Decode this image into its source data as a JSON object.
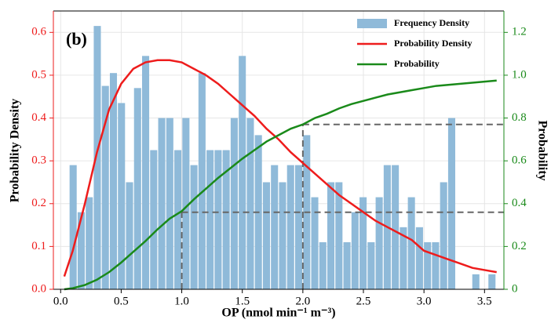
{
  "chart_data": {
    "type": "histogram",
    "panel_label": "(b)",
    "xlabel": "OP (nmol min⁻¹ m⁻³)",
    "ylabel": "Probability Density",
    "y2label": "Probability",
    "name": "Frequency Density",
    "color": "#8fbad9",
    "bins": [
      0.07,
      0.1365,
      0.203,
      0.2695,
      0.336,
      0.4025,
      0.469,
      0.5355,
      0.602,
      0.6685,
      0.735,
      0.8015,
      0.868,
      0.9345,
      1.001,
      1.0675,
      1.134,
      1.2005,
      1.267,
      1.3335,
      1.4,
      1.4665,
      1.533,
      1.5995,
      1.666,
      1.7325,
      1.799,
      1.8655,
      1.932,
      1.9985,
      2.065,
      2.1315,
      2.198,
      2.2645,
      2.331,
      2.3975,
      2.464,
      2.5305,
      2.597,
      2.6635,
      2.73,
      2.7965,
      2.863,
      2.9295,
      2.996,
      3.0625,
      3.129,
      3.1955,
      3.262,
      3.3285,
      3.395,
      3.4615,
      3.528,
      3.5945
    ],
    "values": [
      0.29,
      0.18,
      0.215,
      0.615,
      0.475,
      0.505,
      0.435,
      0.25,
      0.47,
      0.545,
      0.325,
      0.4,
      0.4,
      0.325,
      0.4,
      0.29,
      0.505,
      0.325,
      0.325,
      0.325,
      0.4,
      0.545,
      0.4,
      0.36,
      0.25,
      0.29,
      0.25,
      0.29,
      0.29,
      0.36,
      0.215,
      0.11,
      0.25,
      0.25,
      0.11,
      0.18,
      0.215,
      0.11,
      0.215,
      0.29,
      0.29,
      0.145,
      0.215,
      0.145,
      0.11,
      0.11,
      0.25,
      0.4,
      0,
      0,
      0.035,
      0,
      0.035
    ],
    "series": [
      {
        "type": "line",
        "name": "Probability Density",
        "color": "#ee1c1c",
        "axis": "y",
        "x": [
          0.03,
          0.1,
          0.2,
          0.3,
          0.4,
          0.5,
          0.6,
          0.7,
          0.8,
          0.9,
          1.0,
          1.1,
          1.2,
          1.3,
          1.4,
          1.5,
          1.6,
          1.7,
          1.8,
          1.9,
          2.0,
          2.1,
          2.2,
          2.3,
          2.4,
          2.5,
          2.6,
          2.7,
          2.8,
          2.9,
          3.0,
          3.1,
          3.2,
          3.3,
          3.4,
          3.5,
          3.6
        ],
        "values": [
          0.03,
          0.09,
          0.2,
          0.32,
          0.42,
          0.48,
          0.515,
          0.53,
          0.535,
          0.535,
          0.53,
          0.515,
          0.5,
          0.48,
          0.455,
          0.43,
          0.405,
          0.375,
          0.35,
          0.32,
          0.295,
          0.27,
          0.245,
          0.22,
          0.2,
          0.18,
          0.16,
          0.145,
          0.13,
          0.115,
          0.09,
          0.08,
          0.07,
          0.06,
          0.05,
          0.045,
          0.04
        ]
      },
      {
        "type": "line",
        "name": "Probability",
        "color": "#1a8a1a",
        "axis": "y2",
        "x": [
          0.03,
          0.1,
          0.2,
          0.3,
          0.4,
          0.5,
          0.6,
          0.7,
          0.8,
          0.9,
          1.0,
          1.1,
          1.2,
          1.3,
          1.4,
          1.5,
          1.6,
          1.7,
          1.8,
          1.9,
          2.0,
          2.1,
          2.2,
          2.3,
          2.4,
          2.5,
          2.6,
          2.7,
          2.8,
          2.9,
          3.0,
          3.1,
          3.2,
          3.3,
          3.4,
          3.5,
          3.6
        ],
        "values": [
          0.0,
          0.005,
          0.02,
          0.045,
          0.08,
          0.125,
          0.175,
          0.225,
          0.28,
          0.33,
          0.365,
          0.42,
          0.47,
          0.52,
          0.565,
          0.61,
          0.65,
          0.69,
          0.72,
          0.75,
          0.77,
          0.8,
          0.82,
          0.845,
          0.865,
          0.88,
          0.895,
          0.91,
          0.92,
          0.93,
          0.94,
          0.95,
          0.955,
          0.96,
          0.965,
          0.97,
          0.975
        ]
      }
    ],
    "reference_lines": [
      {
        "x": 1.0,
        "y2": 0.36
      },
      {
        "x": 2.0,
        "y2": 0.77
      }
    ],
    "xlim": [
      -0.06,
      3.66
    ],
    "xticks": [
      {
        "value": 0,
        "label": "0.0"
      },
      0.5,
      {
        "value": 1,
        "label": "1.0"
      },
      1.5,
      {
        "value": 2,
        "label": "2.0"
      },
      2.5,
      {
        "value": 3,
        "label": "3.0"
      },
      3.5
    ],
    "ylim": [
      0,
      0.65
    ],
    "yticks": [
      {
        "value": 0,
        "label": "0.0"
      },
      0.1,
      0.2,
      0.3,
      0.4,
      0.5,
      0.6
    ],
    "y_color": "#ee1c1c",
    "y2lim": [
      0,
      1.3
    ],
    "y2ticks": [
      0,
      0.2,
      0.4,
      0.6,
      0.8,
      {
        "value": 1,
        "label": "1.0"
      },
      1.2
    ],
    "y2_color": "#1a8a1a",
    "grid": true,
    "legend": "upper right"
  }
}
